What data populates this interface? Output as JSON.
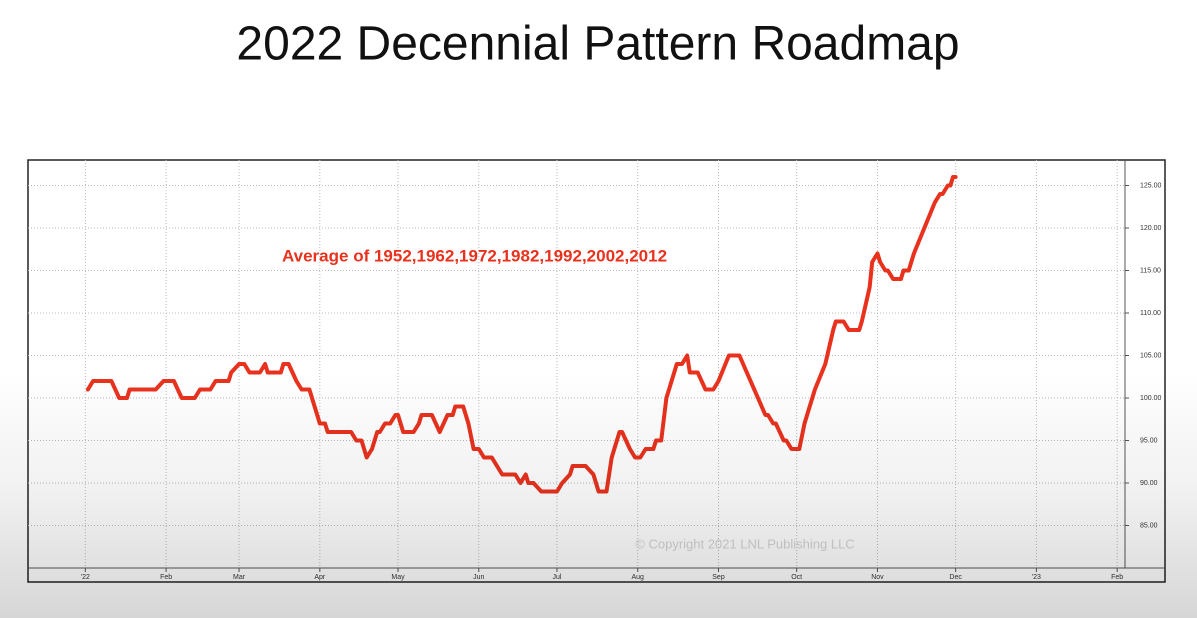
{
  "chart_data": {
    "type": "line",
    "title": "2022 Decennial Pattern Roadmap",
    "annotation": "Average of 1952,1962,1972,1982,1992,2002,2012",
    "watermark": "© Copyright 2021 LNL Publishing LLC",
    "color": "#e8321e",
    "grid": true,
    "xlim": [
      -22,
      399
    ],
    "ylim": [
      80,
      128
    ],
    "xticks": [
      {
        "value": 0,
        "label": "'22"
      },
      {
        "value": 31,
        "label": "Feb"
      },
      {
        "value": 59,
        "label": "Mar"
      },
      {
        "value": 90,
        "label": "Apr"
      },
      {
        "value": 120,
        "label": "May"
      },
      {
        "value": 151,
        "label": "Jun"
      },
      {
        "value": 181,
        "label": "Jul"
      },
      {
        "value": 212,
        "label": "Aug"
      },
      {
        "value": 243,
        "label": "Sep"
      },
      {
        "value": 273,
        "label": "Oct"
      },
      {
        "value": 304,
        "label": "Nov"
      },
      {
        "value": 334,
        "label": "Dec"
      },
      {
        "value": 365,
        "label": "'23"
      },
      {
        "value": 396,
        "label": "Feb"
      }
    ],
    "yticks": [
      {
        "value": 85,
        "label": "85.00"
      },
      {
        "value": 90,
        "label": "90.00"
      },
      {
        "value": 95,
        "label": "95.00"
      },
      {
        "value": 100,
        "label": "100.00"
      },
      {
        "value": 105,
        "label": "105.00"
      },
      {
        "value": 110,
        "label": "110.00"
      },
      {
        "value": 115,
        "label": "115.00"
      },
      {
        "value": 120,
        "label": "120.00"
      },
      {
        "value": 125,
        "label": "125.00"
      }
    ],
    "x": [
      1,
      3,
      10,
      13,
      16,
      17,
      27,
      30,
      34,
      37,
      42,
      44,
      48,
      50,
      55,
      56,
      59,
      61,
      63,
      67,
      69,
      70,
      75,
      76,
      78,
      81,
      83,
      86,
      87,
      89,
      90,
      92,
      93,
      102,
      104,
      106,
      108,
      110,
      112,
      113,
      115,
      117,
      119,
      120,
      122,
      126,
      128,
      129,
      133,
      136,
      139,
      141,
      142,
      145,
      147,
      149,
      151,
      153,
      156,
      158,
      160,
      165,
      167,
      169,
      170,
      172,
      175,
      181,
      183,
      186,
      187,
      192,
      195,
      197,
      200,
      202,
      205,
      206,
      209,
      211,
      213,
      215,
      218,
      219,
      221,
      223,
      225,
      227,
      229,
      231,
      232,
      235,
      238,
      241,
      243,
      247,
      251,
      261,
      262,
      264,
      265,
      268,
      269,
      271,
      274,
      276,
      278,
      280,
      284,
      287,
      288,
      291,
      293,
      297,
      298,
      301,
      302,
      304,
      305,
      307,
      308,
      310,
      313,
      314,
      316,
      318,
      326,
      328,
      329,
      331,
      332,
      333,
      334
    ],
    "values": [
      101,
      102,
      102,
      100,
      100,
      101,
      101,
      102,
      102,
      100,
      100,
      101,
      101,
      102,
      102,
      103,
      104,
      104,
      103,
      103,
      104,
      103,
      103,
      104,
      104,
      102,
      101,
      101,
      100,
      98,
      97,
      97,
      96,
      96,
      95,
      95,
      93,
      94,
      96,
      96,
      97,
      97,
      98,
      98,
      96,
      96,
      97,
      98,
      98,
      96,
      98,
      98,
      99,
      99,
      97,
      94,
      94,
      93,
      93,
      92,
      91,
      91,
      90,
      91,
      90,
      90,
      89,
      89,
      90,
      91,
      92,
      92,
      91,
      89,
      89,
      93,
      96,
      96,
      94,
      93,
      93,
      94,
      94,
      95,
      95,
      100,
      102,
      104,
      104,
      105,
      103,
      103,
      101,
      101,
      102,
      105,
      105,
      98,
      98,
      97,
      97,
      95,
      95,
      94,
      94,
      97,
      99,
      101,
      104,
      108,
      109,
      109,
      108,
      108,
      109,
      113,
      116,
      117,
      116,
      115,
      115,
      114,
      114,
      115,
      115,
      117,
      123,
      124,
      124,
      125,
      125,
      126,
      126
    ]
  }
}
